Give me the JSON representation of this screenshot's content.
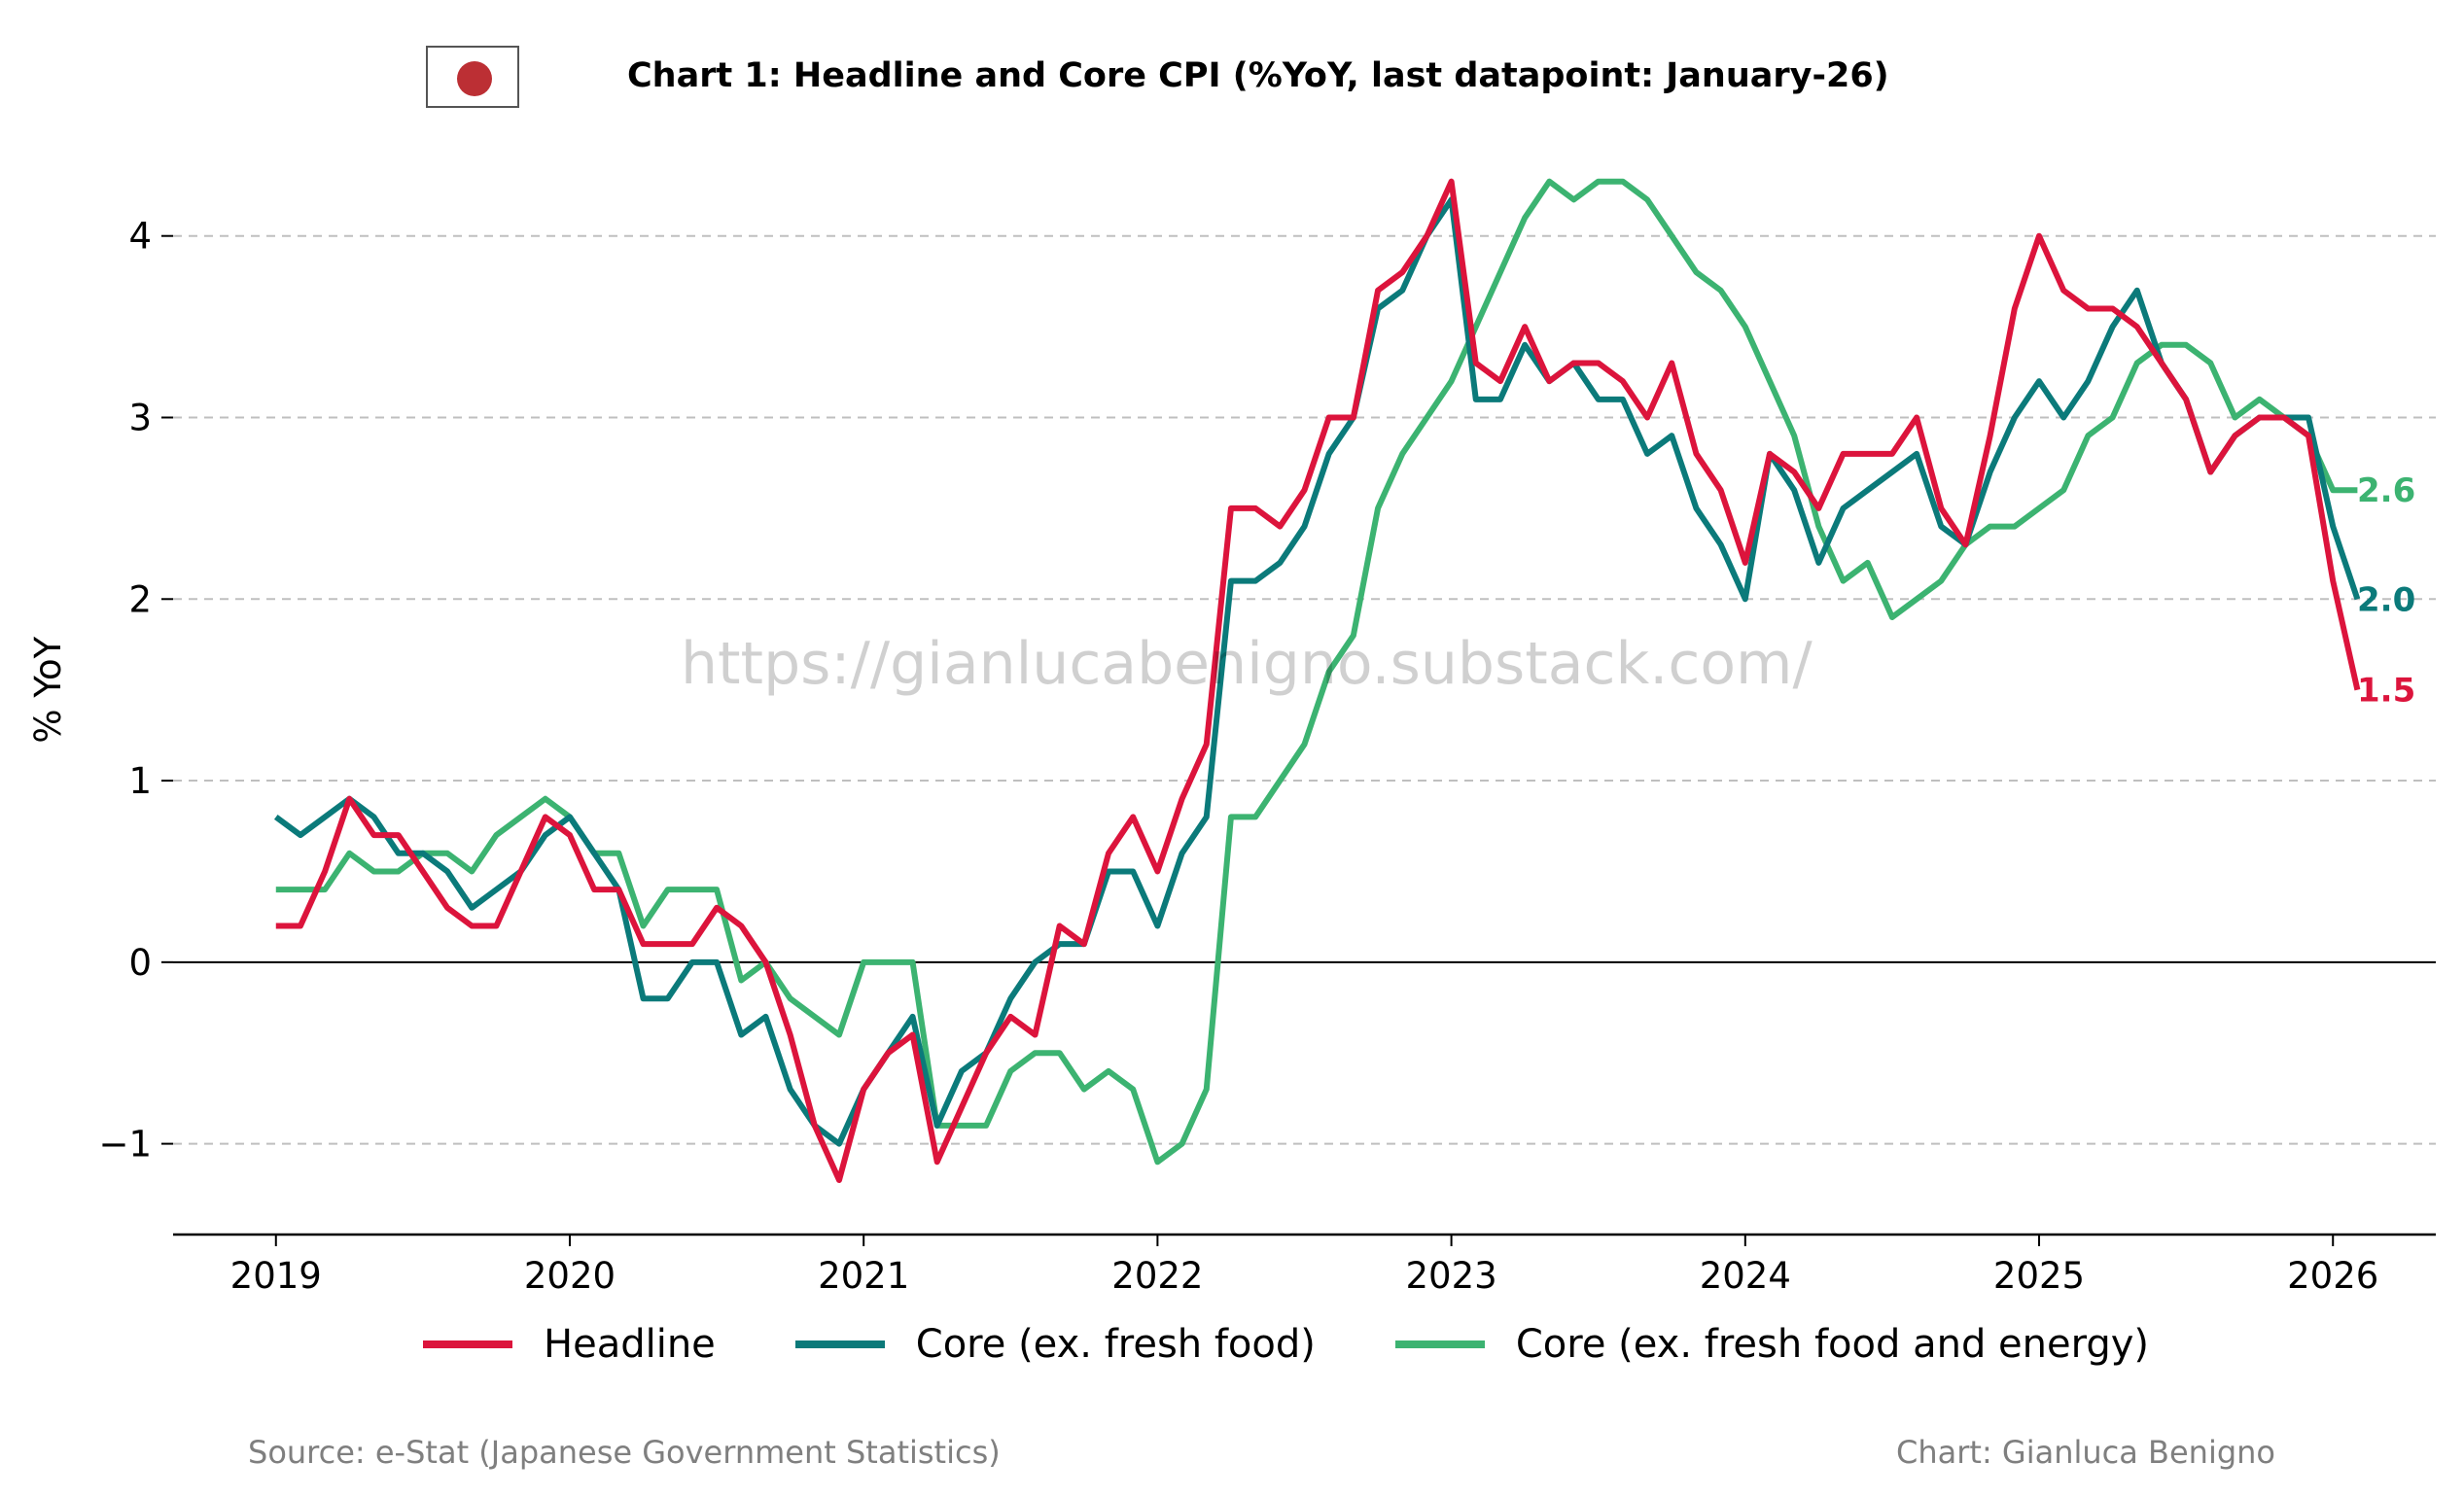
{
  "flag_icon": "japan-flag",
  "watermark": "https://gianlucabenigno.substack.com/",
  "footer": {
    "source": "Source: e-Stat (Japanese Government Statistics)",
    "credit": "Chart: Gianluca Benigno"
  },
  "chart_data": {
    "type": "line",
    "title": "Chart 1: Headline and Core CPI (%YoY, last datapoint: January-26)",
    "xlabel": "",
    "ylabel": "% YoY",
    "xlim": [
      2018.65,
      2026.35
    ],
    "ylim": [
      -1.5,
      4.55
    ],
    "x_ticks": [
      2019,
      2020,
      2021,
      2022,
      2023,
      2024,
      2025,
      2026
    ],
    "y_ticks": [
      -1,
      0,
      1,
      2,
      3,
      4
    ],
    "y_tick_labels": [
      "−1",
      "0",
      "1",
      "2",
      "3",
      "4"
    ],
    "grid": "horizontal dashed",
    "zero_line": true,
    "legend_position": "bottom",
    "x_start": "2019-01",
    "x_end": "2026-01",
    "series": [
      {
        "name": "Headline",
        "color": "#DC143C",
        "end_label": "1.5",
        "values": [
          0.2,
          0.2,
          0.5,
          0.9,
          0.7,
          0.7,
          0.5,
          0.3,
          0.2,
          0.2,
          0.5,
          0.8,
          0.7,
          0.4,
          0.4,
          0.1,
          0.1,
          0.1,
          0.3,
          0.2,
          0.0,
          -0.4,
          -0.9,
          -1.2,
          -0.7,
          -0.5,
          -0.4,
          -1.1,
          -0.8,
          -0.5,
          -0.3,
          -0.4,
          0.2,
          0.1,
          0.6,
          0.8,
          0.5,
          0.9,
          1.2,
          2.5,
          2.5,
          2.4,
          2.6,
          3.0,
          3.0,
          3.7,
          3.8,
          4.0,
          4.3,
          3.3,
          3.2,
          3.5,
          3.2,
          3.3,
          3.3,
          3.2,
          3.0,
          3.3,
          2.8,
          2.6,
          2.2,
          2.8,
          2.7,
          2.5,
          2.8,
          2.8,
          2.8,
          3.0,
          2.5,
          2.3,
          2.9,
          3.6,
          4.0,
          3.7,
          3.6,
          3.6,
          3.5,
          3.3,
          3.1,
          2.7,
          2.9,
          3.0,
          3.0,
          2.9,
          2.1,
          1.5
        ]
      },
      {
        "name": "Core (ex. fresh food)",
        "color": "#0B7A7A",
        "end_label": "2.0",
        "values": [
          0.8,
          0.7,
          0.8,
          0.9,
          0.8,
          0.6,
          0.6,
          0.5,
          0.3,
          0.4,
          0.5,
          0.7,
          0.8,
          0.6,
          0.4,
          -0.2,
          -0.2,
          0.0,
          0.0,
          -0.4,
          -0.3,
          -0.7,
          -0.9,
          -1.0,
          -0.7,
          -0.5,
          -0.3,
          -0.9,
          -0.6,
          -0.5,
          -0.2,
          0.0,
          0.1,
          0.1,
          0.5,
          0.5,
          0.2,
          0.6,
          0.8,
          2.1,
          2.1,
          2.2,
          2.4,
          2.8,
          3.0,
          3.6,
          3.7,
          4.0,
          4.2,
          3.1,
          3.1,
          3.4,
          3.2,
          3.3,
          3.1,
          3.1,
          2.8,
          2.9,
          2.5,
          2.3,
          2.0,
          2.8,
          2.6,
          2.2,
          2.5,
          2.6,
          2.7,
          2.8,
          2.4,
          2.3,
          2.7,
          3.0,
          3.2,
          3.0,
          3.2,
          3.5,
          3.7,
          3.3,
          3.1,
          2.7,
          2.9,
          3.0,
          3.0,
          3.0,
          2.4,
          2.0
        ]
      },
      {
        "name": "Core (ex. fresh food and energy)",
        "color": "#3CB371",
        "end_label": "2.6",
        "values": [
          0.4,
          0.4,
          0.4,
          0.6,
          0.5,
          0.5,
          0.6,
          0.6,
          0.5,
          0.7,
          0.8,
          0.9,
          0.8,
          0.6,
          0.6,
          0.2,
          0.4,
          0.4,
          0.4,
          -0.1,
          0.0,
          -0.2,
          -0.3,
          -0.4,
          0.0,
          0.0,
          0.0,
          -0.9,
          -0.9,
          -0.9,
          -0.6,
          -0.5,
          -0.5,
          -0.7,
          -0.6,
          -0.7,
          -1.1,
          -1.0,
          -0.7,
          0.8,
          0.8,
          1.0,
          1.2,
          1.6,
          1.8,
          2.5,
          2.8,
          3.0,
          3.2,
          3.5,
          3.8,
          4.1,
          4.3,
          4.2,
          4.3,
          4.3,
          4.2,
          4.0,
          3.8,
          3.7,
          3.5,
          3.2,
          2.9,
          2.4,
          2.1,
          2.2,
          1.9,
          2.0,
          2.1,
          2.3,
          2.4,
          2.4,
          2.5,
          2.6,
          2.9,
          3.0,
          3.3,
          3.4,
          3.4,
          3.3,
          3.0,
          3.1,
          3.0,
          2.9,
          2.6,
          2.6
        ]
      }
    ]
  }
}
